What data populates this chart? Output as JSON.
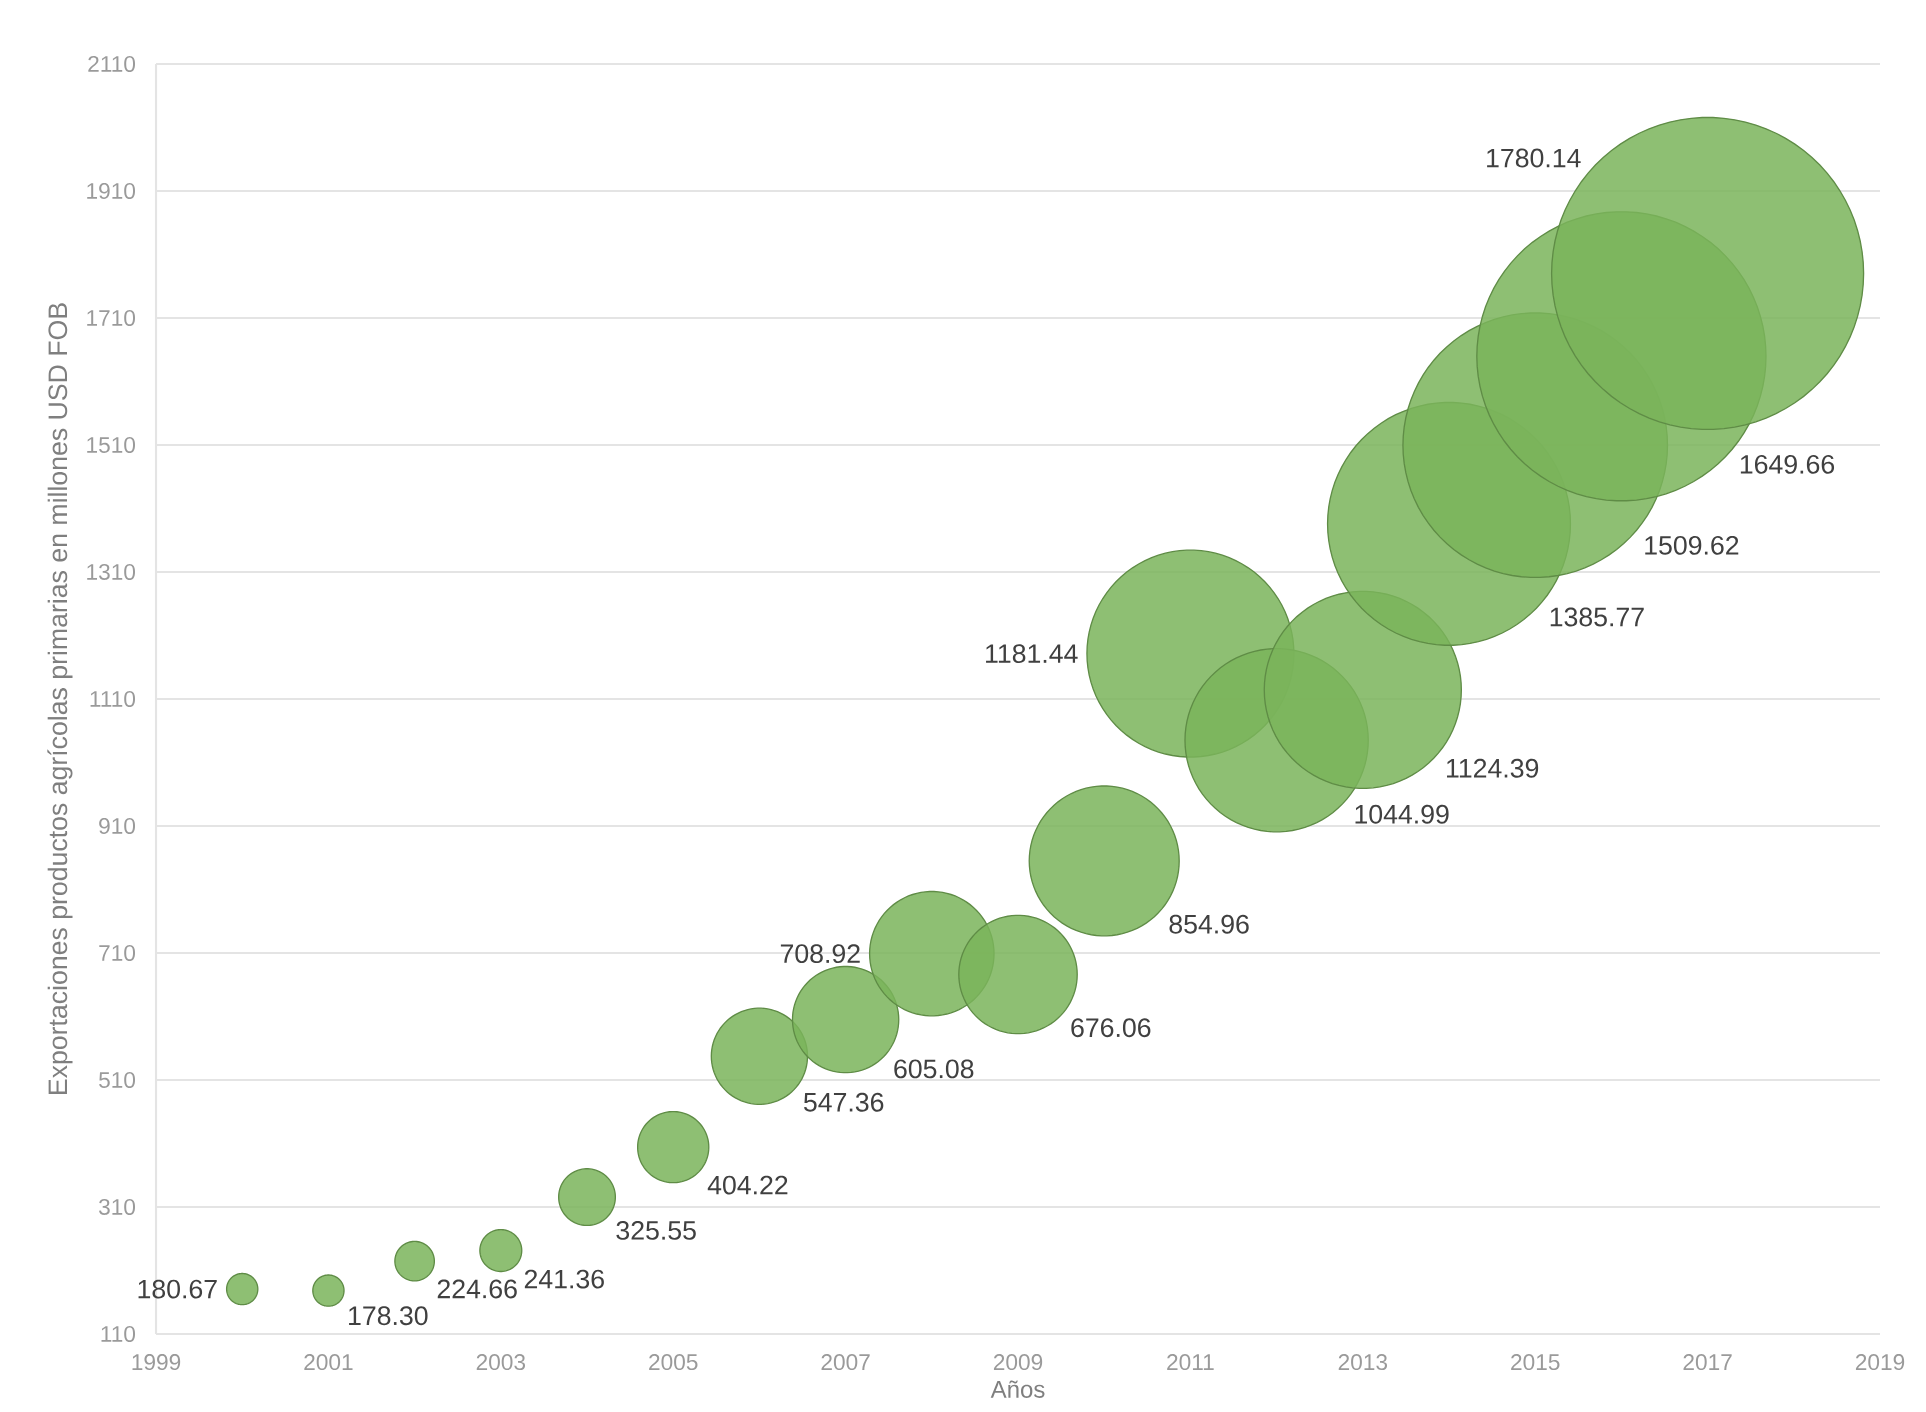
{
  "chart_data": {
    "type": "bubble",
    "xlabel": "Años",
    "ylabel": "Exportaciones productos agrícolas primarias en millones USD FOB",
    "x": [
      2000,
      2001,
      2002,
      2003,
      2004,
      2005,
      2006,
      2007,
      2008,
      2009,
      2010,
      2011,
      2012,
      2013,
      2014,
      2015,
      2016,
      2017
    ],
    "values": [
      180.67,
      178.3,
      224.66,
      241.36,
      325.55,
      404.22,
      547.36,
      605.08,
      708.92,
      676.06,
      854.96,
      1181.44,
      1044.99,
      1124.39,
      1385.77,
      1509.62,
      1649.66,
      1780.14
    ],
    "sizes": [
      0.01,
      0.01,
      0.016,
      0.018,
      0.033,
      0.052,
      0.095,
      0.116,
      0.159,
      0.144,
      0.231,
      0.44,
      0.345,
      0.399,
      0.606,
      0.719,
      0.859,
      1
    ],
    "value_labels": [
      "180.67",
      "178.30",
      "224.66",
      "241.36",
      "325.55",
      "404.22",
      "547.36",
      "605.08",
      "708.92",
      "676.06",
      "854.96",
      "1181.44",
      "1044.99",
      "1124.39",
      "1385.77",
      "1509.62",
      "1649.66",
      "1780.14"
    ],
    "color": "#7ab45a",
    "xlim": [
      1999,
      2019
    ],
    "xticks": [
      1999,
      2001,
      2003,
      2005,
      2007,
      2009,
      2011,
      2013,
      2015,
      2017,
      2019
    ],
    "ylim": [
      110,
      2110
    ],
    "yticks": [
      110,
      310,
      510,
      710,
      910,
      1110,
      1310,
      1510,
      1710,
      1910,
      2110
    ],
    "grid": "y"
  }
}
